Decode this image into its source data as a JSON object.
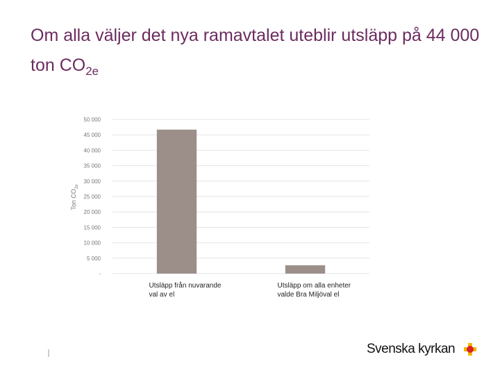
{
  "chart_data": {
    "type": "bar",
    "title": {
      "text": "Om alla väljer det nya ramavtalet uteblir utsläpp på 44 000 ton CO",
      "subscript": "2e"
    },
    "y_label": {
      "text": "Ton CO",
      "subscript": "2e"
    },
    "categories": [
      "Utsläpp från nuvarande val av el",
      "Utsläpp om alla enheter valde Bra Miljöval el"
    ],
    "values": [
      46700,
      2700
    ],
    "color": "#9c8f89",
    "ylim": [
      0,
      50000
    ],
    "yticks": [
      {
        "value": 0,
        "label": "-"
      },
      {
        "value": 5000,
        "label": "5 000"
      },
      {
        "value": 10000,
        "label": "10 000"
      },
      {
        "value": 15000,
        "label": "15 000"
      },
      {
        "value": 20000,
        "label": "20 000"
      },
      {
        "value": 25000,
        "label": "25 000"
      },
      {
        "value": 30000,
        "label": "30 000"
      },
      {
        "value": 35000,
        "label": "35 000"
      },
      {
        "value": 40000,
        "label": "40 000"
      },
      {
        "value": 45000,
        "label": "45 000"
      },
      {
        "value": 50000,
        "label": "50 000"
      }
    ],
    "grid": true
  },
  "footer": {
    "logo": "Svenska kyrkan"
  }
}
